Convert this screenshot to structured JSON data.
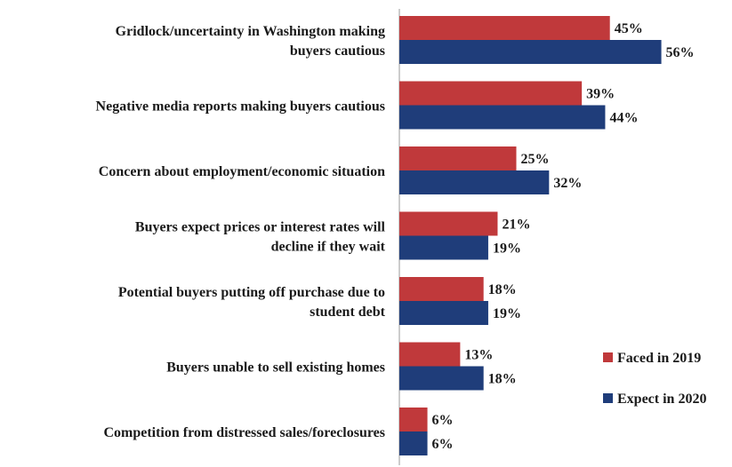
{
  "chart_data": {
    "type": "bar",
    "orientation": "horizontal",
    "categories": [
      [
        "Gridlock/uncertainty in Washington making",
        "buyers cautious"
      ],
      [
        "Negative media reports making buyers cautious"
      ],
      [
        "Concern about employment/economic situation"
      ],
      [
        "Buyers expect prices or interest rates will",
        "decline if they wait"
      ],
      [
        "Potential buyers putting off purchase due to",
        "student debt"
      ],
      [
        "Buyers unable to sell existing homes"
      ],
      [
        "Competition from distressed sales/foreclosures"
      ]
    ],
    "series": [
      {
        "name": "Faced in 2019",
        "color": "#c0393b",
        "values": [
          45,
          39,
          25,
          21,
          18,
          13,
          6
        ],
        "labels": [
          "45%",
          "39%",
          "25%",
          "21%",
          "18%",
          "13%",
          "6%"
        ]
      },
      {
        "name": "Expect in 2020",
        "color": "#1f3d7a",
        "values": [
          56,
          44,
          32,
          19,
          19,
          18,
          6
        ],
        "labels": [
          "56%",
          "44%",
          "32%",
          "19%",
          "19%",
          "18%",
          "6%"
        ]
      }
    ],
    "xlim": [
      0,
      65
    ],
    "legend_position": "right",
    "grid": false
  }
}
